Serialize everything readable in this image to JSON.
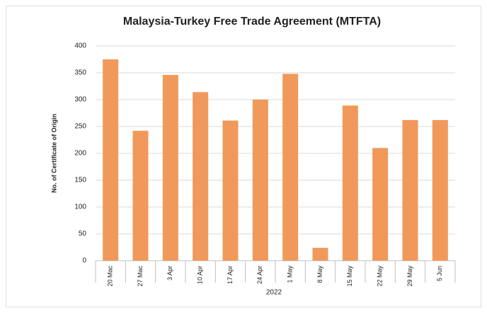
{
  "chart_data": {
    "type": "bar",
    "title": "Malaysia-Turkey Free Trade Agreement (MTFTA)",
    "x_label": "2022",
    "y_label": "No. of Certificate of Origin",
    "categories": [
      "20 Mac",
      "27 Mac",
      "3 Apr",
      "10 Apr",
      "17 Apr",
      "24 Apr",
      "1 May",
      "8 May",
      "15 May",
      "22 May",
      "29 May",
      "5 Jun"
    ],
    "values": [
      375,
      242,
      346,
      314,
      261,
      300,
      348,
      24,
      289,
      210,
      262,
      262
    ],
    "color": "#f1995a",
    "ylim": [
      0,
      400
    ],
    "yticks": [
      0,
      50,
      100,
      150,
      200,
      250,
      300,
      350,
      400
    ],
    "grid": true
  }
}
